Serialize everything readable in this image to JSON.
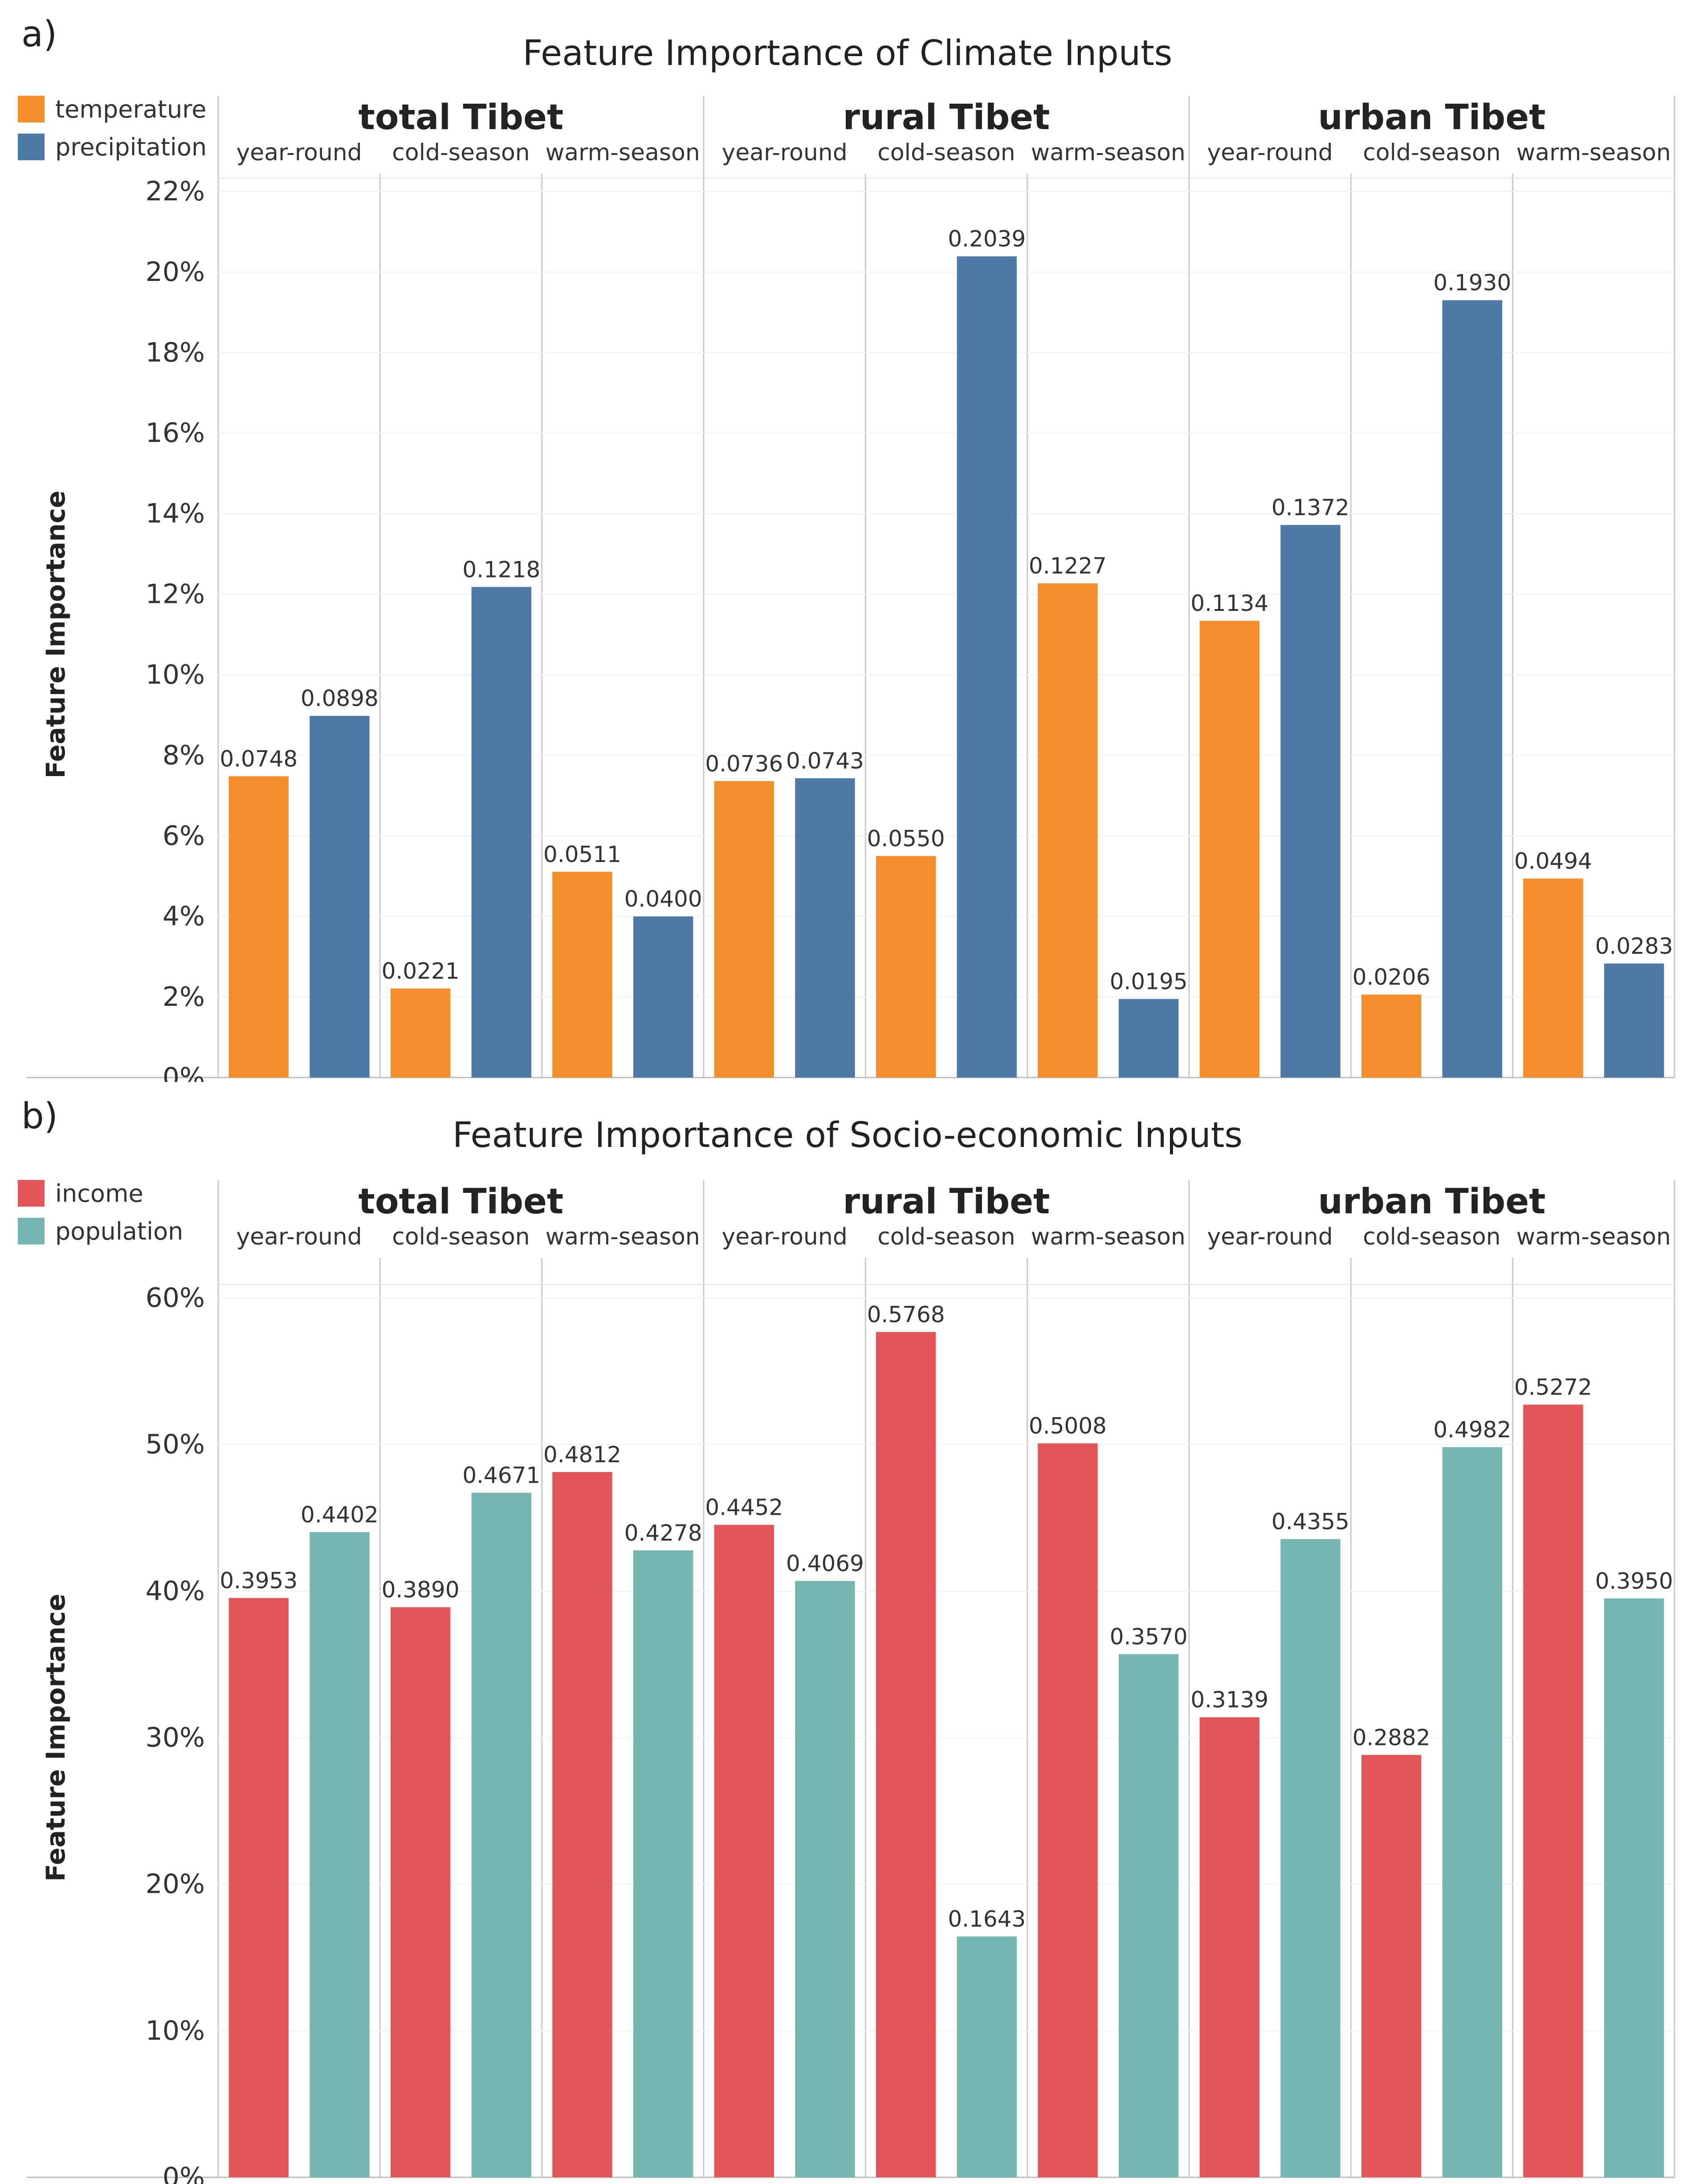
{
  "chart_data": [
    {
      "type": "bar",
      "panel_label": "a)",
      "title": "Feature Importance of Climate Inputs",
      "ylabel": "Feature Importance",
      "ylim": [
        0,
        0.22
      ],
      "yticks": [
        "0%",
        "2%",
        "4%",
        "6%",
        "8%",
        "10%",
        "12%",
        "14%",
        "16%",
        "18%",
        "20%",
        "22%"
      ],
      "ytick_values": [
        0,
        0.02,
        0.04,
        0.06,
        0.08,
        0.1,
        0.12,
        0.14,
        0.16,
        0.18,
        0.2,
        0.22
      ],
      "groups": [
        "total Tibet",
        "rural Tibet",
        "urban Tibet"
      ],
      "subgroups": [
        "year-round",
        "cold-season",
        "warm-season"
      ],
      "series": [
        {
          "name": "temperature",
          "color": "#f28e2b",
          "values": [
            0.0748,
            0.0221,
            0.0511,
            0.0736,
            0.055,
            0.1227,
            0.1134,
            0.0206,
            0.0494
          ],
          "labels": [
            "0.0748",
            "0.0221",
            "0.0511",
            "0.0736",
            "0.0550",
            "0.1227",
            "0.1134",
            "0.0206",
            "0.0494"
          ]
        },
        {
          "name": "precipitation",
          "color": "#4e79a7",
          "values": [
            0.0898,
            0.1218,
            0.04,
            0.0743,
            0.2039,
            0.0195,
            0.1372,
            0.193,
            0.0283
          ],
          "labels": [
            "0.0898",
            "0.1218",
            "0.0400",
            "0.0743",
            "0.2039",
            "0.0195",
            "0.1372",
            "0.1930",
            "0.0283"
          ]
        }
      ]
    },
    {
      "type": "bar",
      "panel_label": "b)",
      "title": "Feature Importance of Socio-economic Inputs",
      "ylabel": "Feature Importance",
      "ylim": [
        0,
        0.6
      ],
      "yticks": [
        "0%",
        "10%",
        "20%",
        "30%",
        "40%",
        "50%",
        "60%"
      ],
      "ytick_values": [
        0,
        0.1,
        0.2,
        0.3,
        0.4,
        0.5,
        0.6
      ],
      "groups": [
        "total Tibet",
        "rural Tibet",
        "urban Tibet"
      ],
      "subgroups": [
        "year-round",
        "cold-season",
        "warm-season"
      ],
      "series": [
        {
          "name": "income",
          "color": "#e15759",
          "values": [
            0.3953,
            0.389,
            0.4812,
            0.4452,
            0.5768,
            0.5008,
            0.3139,
            0.2882,
            0.5272
          ],
          "labels": [
            "0.3953",
            "0.3890",
            "0.4812",
            "0.4452",
            "0.5768",
            "0.5008",
            "0.3139",
            "0.2882",
            "0.5272"
          ]
        },
        {
          "name": "population",
          "color": "#76b7b2",
          "values": [
            0.4402,
            0.4671,
            0.4278,
            0.4069,
            0.1643,
            0.357,
            0.4355,
            0.4982,
            0.395
          ],
          "labels": [
            "0.4402",
            "0.4671",
            "0.4278",
            "0.4069",
            "0.1643",
            "0.3570",
            "0.4355",
            "0.4982",
            "0.3950"
          ]
        }
      ]
    }
  ]
}
